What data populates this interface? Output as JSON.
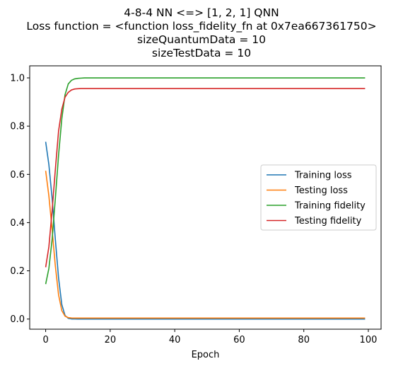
{
  "chart_data": {
    "type": "line",
    "title_lines": [
      "4-8-4 NN <=> [1, 2, 1] QNN",
      "Loss function = <function loss_fidelity_fn at 0x7ea667361750>",
      "sizeQuantumData = 10",
      "sizeTestData = 10"
    ],
    "xlabel": "Epoch",
    "ylabel": "",
    "xlim": [
      -4.95,
      103.95
    ],
    "ylim": [
      -0.042,
      1.05
    ],
    "xticks": [
      0,
      20,
      40,
      60,
      80,
      100
    ],
    "yticks": [
      0.0,
      0.2,
      0.4,
      0.6,
      0.8,
      1.0
    ],
    "xtick_labels": [
      "0",
      "20",
      "40",
      "60",
      "80",
      "100"
    ],
    "ytick_labels": [
      "0.0",
      "0.2",
      "0.4",
      "0.6",
      "0.8",
      "1.0"
    ],
    "grid": false,
    "legend_position": "center-right",
    "x": [
      0,
      1,
      2,
      3,
      4,
      5,
      6,
      7,
      8,
      9,
      10,
      11,
      12,
      13,
      14,
      15,
      20,
      30,
      40,
      50,
      60,
      70,
      80,
      90,
      99
    ],
    "series": [
      {
        "name": "Training loss",
        "color": "#1f77b4",
        "values": [
          0.735,
          0.64,
          0.5,
          0.33,
          0.17,
          0.06,
          0.015,
          0.003,
          0.0005,
          0.0002,
          0.0001,
          0.0,
          0.0,
          0.0,
          0.0,
          0.0,
          0.0,
          0.0,
          0.0,
          0.0,
          0.0,
          0.0,
          0.0,
          0.0,
          0.0
        ]
      },
      {
        "name": "Testing loss",
        "color": "#ff7f0e",
        "values": [
          0.615,
          0.51,
          0.37,
          0.22,
          0.1,
          0.035,
          0.012,
          0.006,
          0.0045,
          0.004,
          0.004,
          0.004,
          0.004,
          0.004,
          0.004,
          0.004,
          0.004,
          0.004,
          0.004,
          0.004,
          0.004,
          0.004,
          0.004,
          0.004,
          0.004
        ]
      },
      {
        "name": "Training fidelity",
        "color": "#2ca02c",
        "values": [
          0.145,
          0.21,
          0.33,
          0.5,
          0.68,
          0.83,
          0.93,
          0.975,
          0.99,
          0.996,
          0.998,
          0.999,
          1.0,
          1.0,
          1.0,
          1.0,
          1.0,
          1.0,
          1.0,
          1.0,
          1.0,
          1.0,
          1.0,
          1.0,
          1.0
        ]
      },
      {
        "name": "Testing fidelity",
        "color": "#d62728",
        "values": [
          0.215,
          0.3,
          0.45,
          0.62,
          0.78,
          0.87,
          0.92,
          0.94,
          0.95,
          0.954,
          0.955,
          0.956,
          0.956,
          0.956,
          0.956,
          0.956,
          0.956,
          0.956,
          0.956,
          0.956,
          0.956,
          0.956,
          0.956,
          0.956,
          0.956
        ]
      }
    ]
  }
}
